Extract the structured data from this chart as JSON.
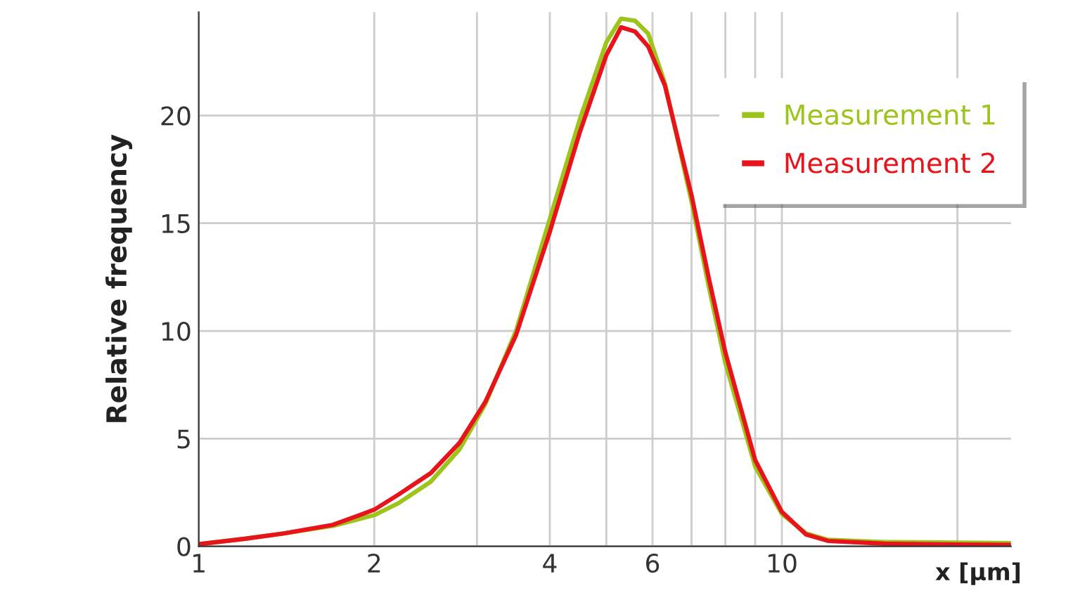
{
  "chart_data": {
    "type": "line",
    "xlabel": "x [µm]",
    "ylabel": "Relative frequency",
    "log": "x",
    "x": [
      1,
      1.2,
      1.4,
      1.7,
      2,
      2.2,
      2.5,
      2.8,
      3.1,
      3.5,
      4,
      4.5,
      5,
      5.3,
      5.6,
      5.9,
      6.3,
      7,
      7.5,
      8,
      9,
      10,
      11,
      12,
      15,
      20,
      24.6
    ],
    "series": [
      {
        "name": "Measurement 1",
        "color": "#9dc41a",
        "values": [
          0.1,
          0.35,
          0.6,
          0.95,
          1.45,
          2.0,
          3.0,
          4.5,
          6.6,
          10,
          15.2,
          19.8,
          23.4,
          24.5,
          24.4,
          23.8,
          21.5,
          16,
          12,
          8.5,
          3.7,
          1.5,
          0.6,
          0.3,
          0.2,
          0.17,
          0.15
        ]
      },
      {
        "name": "Measurement 2",
        "color": "#e8141c",
        "values": [
          0.1,
          0.35,
          0.6,
          1.0,
          1.7,
          2.4,
          3.4,
          4.8,
          6.7,
          9.8,
          14.6,
          19.2,
          22.8,
          24.1,
          23.9,
          23.2,
          21.4,
          16.3,
          12.4,
          9.0,
          4.0,
          1.6,
          0.55,
          0.25,
          0.12,
          0.08,
          0.07
        ]
      }
    ],
    "xlim": [
      1,
      24.7
    ],
    "ylim": [
      0,
      24.8
    ],
    "xticks": [
      1,
      2,
      {
        "value": 3,
        "label": null
      },
      4,
      {
        "value": 5,
        "label": null
      },
      6,
      {
        "value": 7,
        "label": null
      },
      {
        "value": 8,
        "label": null
      },
      {
        "value": 9,
        "label": null
      },
      10,
      {
        "value": 20,
        "label": null
      }
    ],
    "yticks": [
      0,
      5,
      10,
      15,
      20
    ],
    "grid": true,
    "legend": "top right",
    "marker": "none",
    "line_style": "solid"
  }
}
